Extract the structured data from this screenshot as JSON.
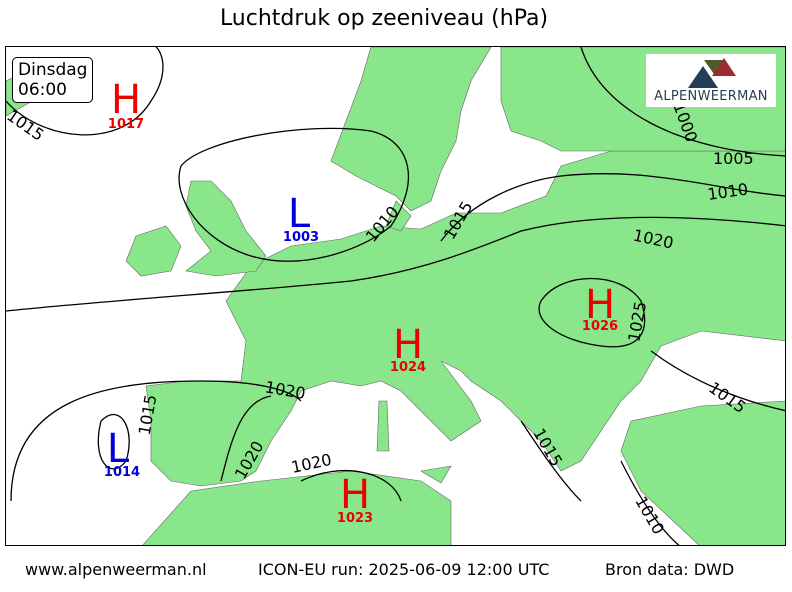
{
  "title": "Luchtdruk op zeeniveau (hPa)",
  "valid_time": {
    "day": "Dinsdag",
    "time": "06:00"
  },
  "logo": {
    "text": "ALPENWEERMAN"
  },
  "colors": {
    "land": "#8ae68a",
    "sea": "#ffffff",
    "high": "#ee0000",
    "low": "#0000dd",
    "isobar": "#000000"
  },
  "pressure_centers": [
    {
      "type": "H",
      "value": "1017"
    },
    {
      "type": "L",
      "value": "1003"
    },
    {
      "type": "H",
      "value": "1024"
    },
    {
      "type": "H",
      "value": "1026"
    },
    {
      "type": "L",
      "value": "1014"
    },
    {
      "type": "H",
      "value": "1023"
    }
  ],
  "isobar_labels": [
    "1015",
    "1010",
    "1015",
    "1005",
    "1010",
    "1020",
    "1025",
    "1015",
    "1020",
    "1020",
    "1015",
    "1020",
    "1015",
    "1010",
    "1000"
  ],
  "footer": {
    "site": "www.alpenweerman.nl",
    "run": "ICON-EU run: 2025-06-09 12:00 UTC",
    "source": "Bron data: DWD"
  }
}
